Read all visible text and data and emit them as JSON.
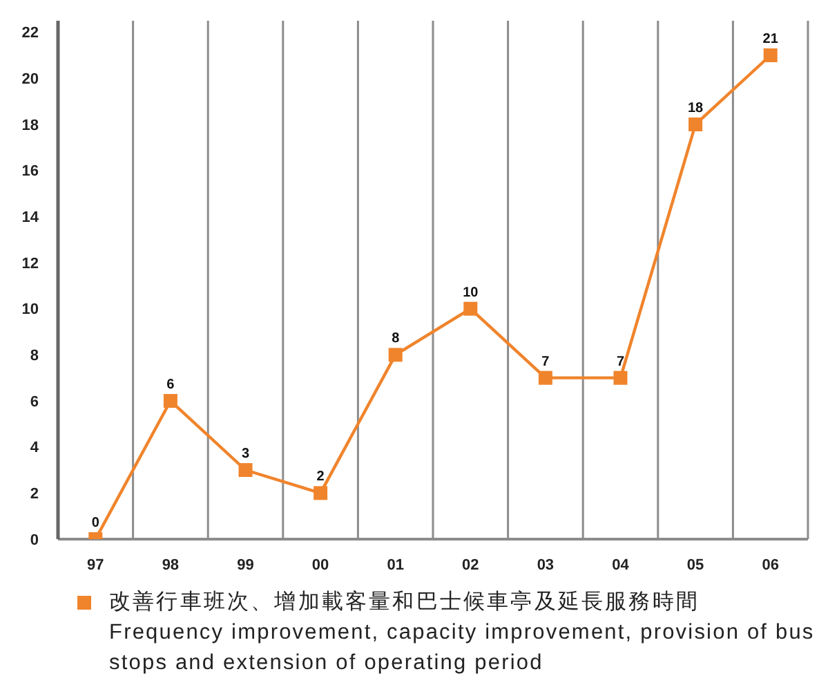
{
  "chart_data": {
    "type": "line",
    "categories": [
      "97",
      "98",
      "99",
      "00",
      "01",
      "02",
      "03",
      "04",
      "05",
      "06"
    ],
    "series": [
      {
        "name": "改善行車班次、增加載客量和巴士候車亭及延長服務時間\nFrequency improvement, capacity improvement, provision of bus stops and extension of operating period",
        "color": "#f0842c",
        "values": [
          0,
          6,
          3,
          2,
          8,
          10,
          7,
          7,
          18,
          21
        ]
      }
    ],
    "ylim": [
      0,
      22.5
    ],
    "yticks": [
      0,
      2,
      4,
      6,
      8,
      10,
      12,
      14,
      16,
      18,
      20,
      22
    ],
    "grid": "x",
    "legend": "bottom",
    "marker": "square",
    "line_style": "solid",
    "data_labels": true
  }
}
